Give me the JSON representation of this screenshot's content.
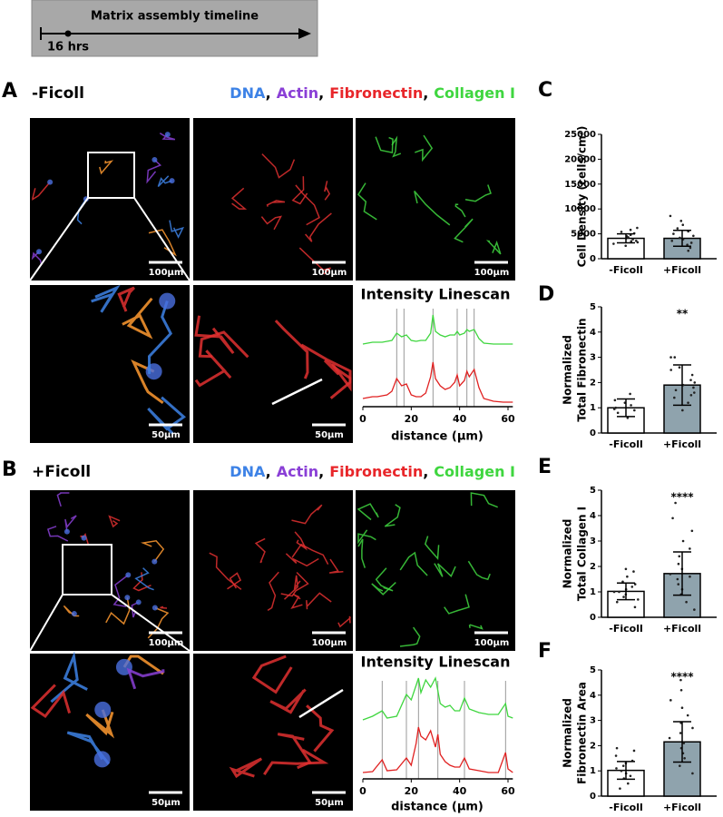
{
  "figure": {
    "timeline": {
      "title": "Matrix assembly timeline",
      "marker": "16 hrs"
    },
    "panels": [
      {
        "label": "A",
        "condition": "-Ficoll",
        "separator": ",",
        "stains": [
          {
            "name": "DNA",
            "color": "#3d82e6"
          },
          {
            "name": "Actin",
            "color": "#8a3fd6"
          },
          {
            "name": "Fibronectin",
            "color": "#e8262a"
          },
          {
            "name": "Collagen I",
            "color": "#3fd63f"
          }
        ],
        "scale_bars": [
          "100µm",
          "100µm",
          "100µm",
          "50µm",
          "50µm"
        ]
      },
      {
        "label": "B",
        "condition": "+Ficoll",
        "separator": ",",
        "stains": [
          {
            "name": "DNA",
            "color": "#3d82e6"
          },
          {
            "name": "Actin",
            "color": "#8a3fd6"
          },
          {
            "name": "Fibronectin",
            "color": "#e8262a"
          },
          {
            "name": "Collagen I",
            "color": "#3fd63f"
          }
        ],
        "scale_bars": [
          "100µm",
          "100µm",
          "100µm",
          "50µm",
          "50µm"
        ]
      }
    ]
  },
  "chart_data": [
    {
      "type": "line",
      "title": "Intensity Linescan",
      "xlabel": "distance (µm)",
      "xlim": [
        0,
        62
      ],
      "xticks": [
        0,
        20,
        40,
        60
      ],
      "x": [
        0,
        2,
        4,
        6,
        8,
        10,
        12,
        14,
        16,
        18,
        20,
        22,
        24,
        26,
        28,
        29,
        30,
        32,
        34,
        36,
        38,
        39,
        40,
        42,
        43,
        44,
        46,
        48,
        50,
        54,
        58,
        62
      ],
      "reference_x": [
        14,
        17,
        29,
        39,
        43,
        46
      ],
      "series": [
        {
          "color": "#3fd63f",
          "values": [
            3.3,
            3.35,
            3.4,
            3.4,
            3.4,
            3.45,
            3.5,
            3.9,
            3.7,
            3.8,
            3.5,
            3.45,
            3.5,
            3.5,
            3.9,
            4.9,
            4.0,
            3.8,
            3.7,
            3.8,
            3.8,
            4.0,
            3.8,
            3.9,
            4.1,
            4.0,
            4.1,
            3.6,
            3.35,
            3.3,
            3.3,
            3.3
          ]
        },
        {
          "color": "#e02020",
          "values": [
            0.3,
            0.35,
            0.4,
            0.4,
            0.45,
            0.5,
            0.7,
            1.4,
            1.0,
            1.1,
            0.5,
            0.4,
            0.4,
            0.6,
            1.5,
            2.3,
            1.4,
            1.0,
            0.8,
            0.9,
            1.2,
            1.6,
            1.0,
            1.3,
            1.8,
            1.5,
            1.9,
            0.9,
            0.3,
            0.15,
            0.1,
            0.1
          ]
        }
      ]
    },
    {
      "type": "line",
      "title": "Intensity Linescan",
      "xlabel": "distance (µm)",
      "xlim": [
        0,
        62
      ],
      "xticks": [
        0,
        20,
        40,
        60
      ],
      "x": [
        0,
        4,
        8,
        10,
        14,
        18,
        20,
        22,
        23,
        24,
        26,
        28,
        30,
        31,
        32,
        34,
        36,
        38,
        40,
        42,
        44,
        48,
        52,
        56,
        59,
        60,
        62
      ],
      "reference_x": [
        8,
        18,
        23,
        31,
        42,
        59
      ],
      "series": [
        {
          "color": "#3fd63f",
          "values": [
            3.1,
            3.3,
            3.6,
            3.2,
            3.3,
            4.5,
            4.2,
            5.0,
            5.4,
            4.6,
            5.3,
            4.9,
            5.4,
            4.7,
            4.0,
            3.8,
            3.9,
            3.6,
            3.6,
            4.3,
            3.7,
            3.5,
            3.4,
            3.4,
            4.0,
            3.3,
            3.2
          ]
        },
        {
          "color": "#e02020",
          "values": [
            0.2,
            0.25,
            0.9,
            0.3,
            0.35,
            1.0,
            0.6,
            1.8,
            2.7,
            2.2,
            2.0,
            2.5,
            1.6,
            2.3,
            1.2,
            0.8,
            0.6,
            0.5,
            0.5,
            1.0,
            0.4,
            0.3,
            0.2,
            0.2,
            1.3,
            0.4,
            0.2
          ]
        }
      ]
    },
    {
      "type": "bar",
      "panel": "C",
      "ylabel": [
        "Cell Density (cells/cm²)"
      ],
      "categories": [
        "-Ficoll",
        "+Ficoll"
      ],
      "values": [
        4100,
        4100
      ],
      "errors": [
        900,
        1600
      ],
      "colors": [
        "#ffffff",
        "#8fa3ad"
      ],
      "significance": [
        null,
        null
      ],
      "points": [
        [
          2600,
          3000,
          3300,
          3600,
          3900,
          4100,
          4300,
          4500,
          4800,
          5100,
          5400,
          5800,
          6200,
          3500
        ],
        [
          1600,
          2200,
          2800,
          3200,
          3600,
          3900,
          4200,
          4600,
          5000,
          5500,
          6100,
          6800,
          7600,
          8600
        ]
      ],
      "ylim": [
        0,
        25000
      ],
      "yticks": [
        0,
        5000,
        10000,
        15000,
        20000,
        25000
      ]
    },
    {
      "type": "bar",
      "panel": "D",
      "ylabel": [
        "Normalized",
        "Total Fibronectin"
      ],
      "categories": [
        "-Ficoll",
        "+Ficoll"
      ],
      "values": [
        1.0,
        1.9
      ],
      "errors": [
        0.35,
        0.8
      ],
      "colors": [
        "#ffffff",
        "#8fa3ad"
      ],
      "significance": [
        null,
        "**"
      ],
      "points": [
        [
          1.55,
          1.3,
          1.2,
          1.0,
          0.95,
          0.8,
          0.6,
          1.1,
          0.9
        ],
        [
          3.0,
          3.0,
          2.6,
          2.5,
          2.3,
          2.1,
          1.9,
          1.8,
          1.6,
          1.5,
          1.4,
          1.2,
          0.9,
          2.0,
          1.7
        ]
      ],
      "ylim": [
        0,
        5
      ],
      "yticks": [
        0,
        1,
        2,
        3,
        4,
        5
      ]
    },
    {
      "type": "bar",
      "panel": "E",
      "ylabel": [
        "Normalized",
        "Total Collagen I"
      ],
      "categories": [
        "-Ficoll",
        "+Ficoll"
      ],
      "values": [
        1.02,
        1.72
      ],
      "errors": [
        0.33,
        0.85
      ],
      "colors": [
        "#ffffff",
        "#8fa3ad"
      ],
      "significance": [
        null,
        "****"
      ],
      "points": [
        [
          0.4,
          0.6,
          0.7,
          0.8,
          0.9,
          1.0,
          1.0,
          1.1,
          1.2,
          1.3,
          1.4,
          1.6,
          1.8,
          1.9
        ],
        [
          0.3,
          0.6,
          0.9,
          1.1,
          1.3,
          1.5,
          1.7,
          1.9,
          2.1,
          2.4,
          2.7,
          3.0,
          3.4,
          3.9,
          4.5,
          1.6
        ]
      ],
      "ylim": [
        0,
        5
      ],
      "yticks": [
        0,
        1,
        2,
        3,
        4,
        5
      ]
    },
    {
      "type": "bar",
      "panel": "F",
      "ylabel": [
        "Normalized",
        "Fibronectin Area"
      ],
      "categories": [
        "-Ficoll",
        "+Ficoll"
      ],
      "values": [
        1.02,
        2.15
      ],
      "errors": [
        0.35,
        0.8
      ],
      "colors": [
        "#ffffff",
        "#8fa3ad"
      ],
      "significance": [
        null,
        "****"
      ],
      "points": [
        [
          0.3,
          0.5,
          0.7,
          0.8,
          0.9,
          1.0,
          1.1,
          1.2,
          1.3,
          1.4,
          1.6,
          1.8,
          1.9
        ],
        [
          0.9,
          1.2,
          1.5,
          1.7,
          1.9,
          2.1,
          2.3,
          2.5,
          2.7,
          2.9,
          3.2,
          3.5,
          3.8,
          4.2,
          4.6
        ]
      ],
      "ylim": [
        0,
        5
      ],
      "yticks": [
        0,
        1,
        2,
        3,
        4,
        5
      ]
    }
  ]
}
